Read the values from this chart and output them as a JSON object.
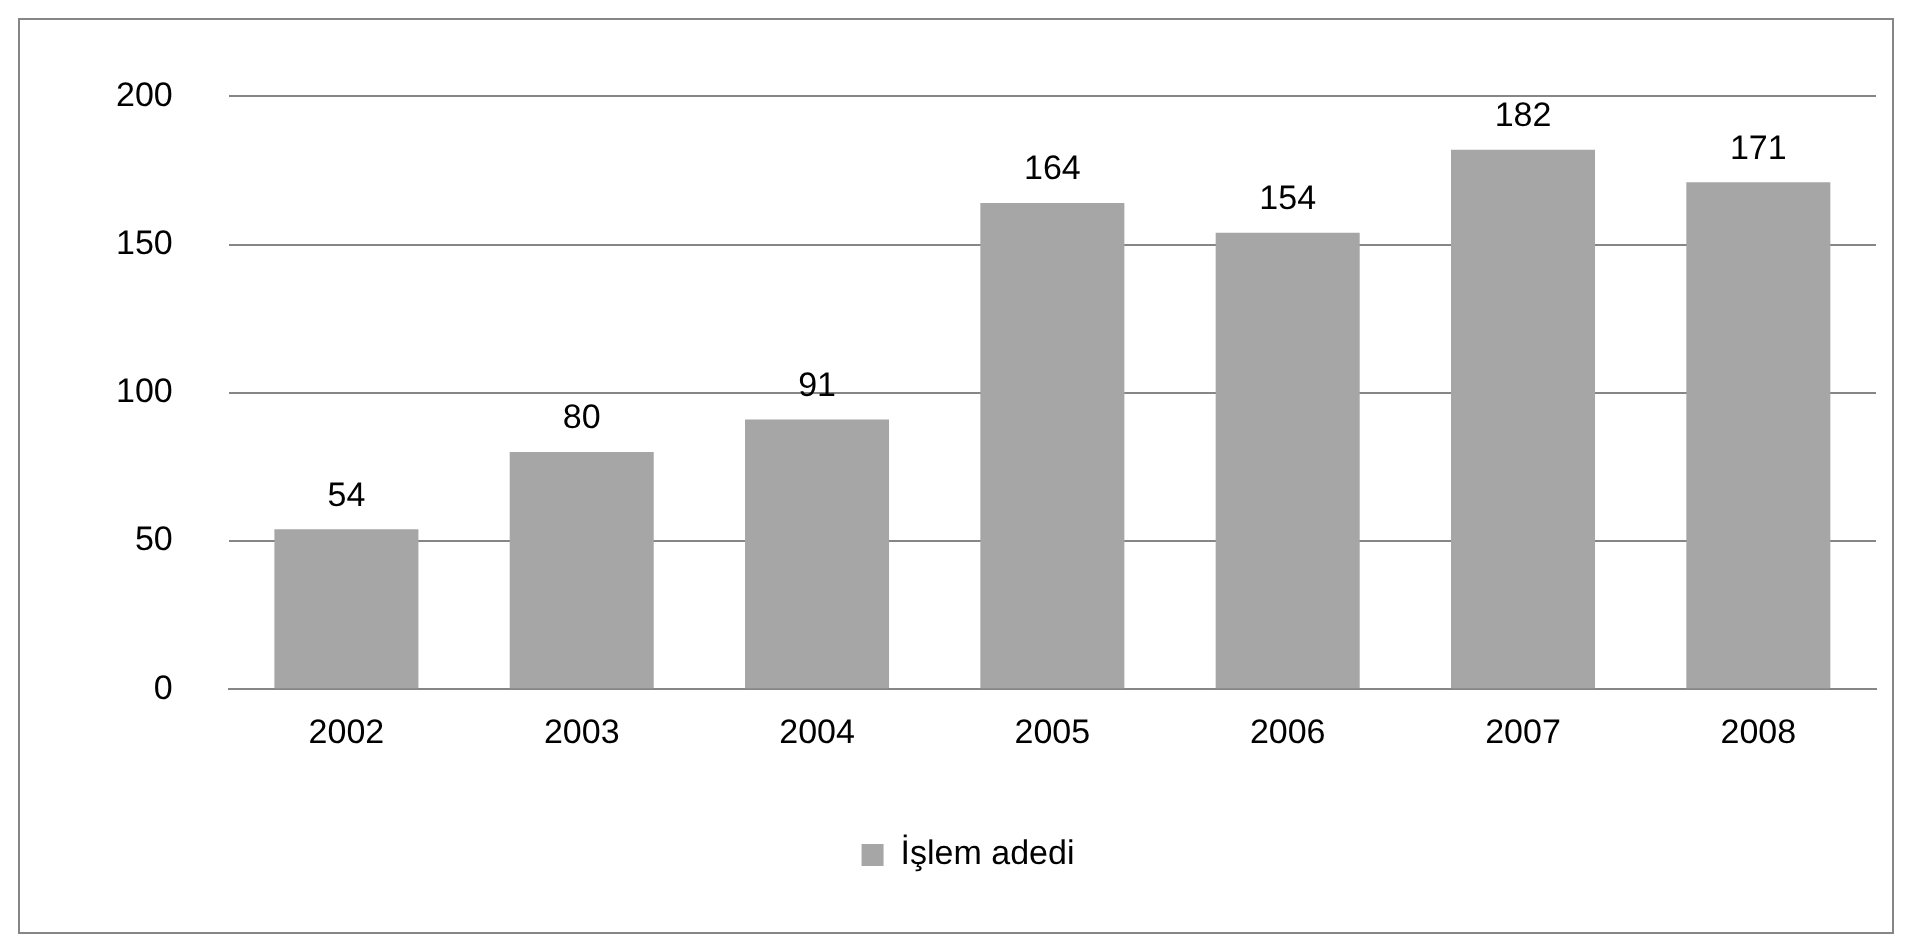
{
  "chart_data": {
    "type": "bar",
    "categories": [
      "2002",
      "2003",
      "2004",
      "2005",
      "2006",
      "2007",
      "2008"
    ],
    "series": [
      {
        "name": "İşlem adedi",
        "color": "#a6a6a6",
        "values": [
          54,
          80,
          91,
          164,
          154,
          182,
          171
        ]
      }
    ],
    "ylim": [
      0,
      200
    ],
    "yticks": [
      0,
      50,
      100,
      150,
      200
    ],
    "grid": "y",
    "legend": "bottom",
    "data_labels": true
  }
}
